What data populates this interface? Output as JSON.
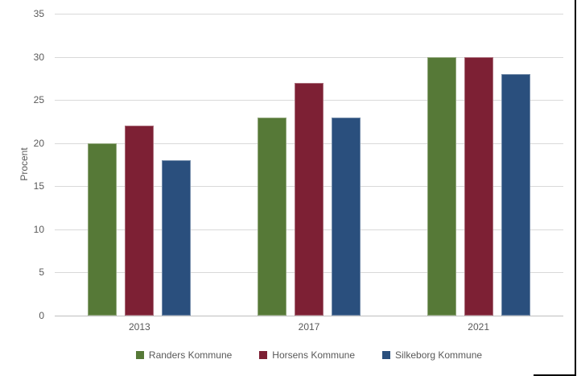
{
  "chart_data": {
    "type": "bar",
    "title": "",
    "xlabel": "",
    "ylabel": "Procent",
    "ylim": [
      0,
      35
    ],
    "ytick_step": 5,
    "grid": true,
    "legend_position": "bottom",
    "categories": [
      "2013",
      "2017",
      "2021"
    ],
    "series": [
      {
        "name": "Randers Kommune",
        "color": "#567937",
        "values": [
          20,
          23,
          30
        ]
      },
      {
        "name": "Horsens Kommune",
        "color": "#7D2034",
        "values": [
          22,
          27,
          30
        ]
      },
      {
        "name": "Silkeborg Kommune",
        "color": "#2A4F7D",
        "values": [
          18,
          23,
          28
        ]
      }
    ]
  },
  "style_colors": {
    "gridline": "#D9D9D9",
    "axis_line": "#BFBFBF",
    "tick_text": "#595959",
    "screenshot_edge": "#000000"
  }
}
